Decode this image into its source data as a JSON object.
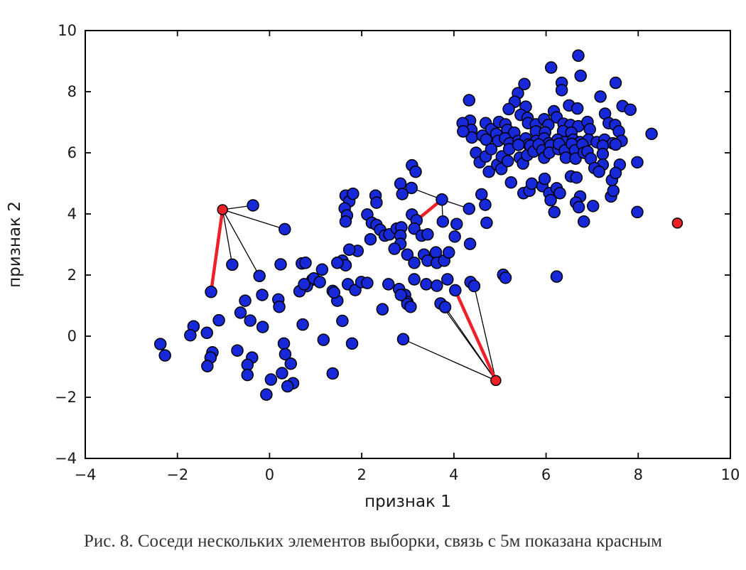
{
  "caption": {
    "text": "Рис. 8. Соседи нескольких элементов выборки, связь с 5м показана красным"
  },
  "chart_data": {
    "type": "scatter",
    "title": "",
    "xlabel": "признак 1",
    "ylabel": "признак 2",
    "xlim": [
      -4,
      10
    ],
    "ylim": [
      -4,
      10
    ],
    "xticks": [
      -4,
      -2,
      0,
      2,
      4,
      6,
      8,
      10
    ],
    "yticks": [
      -4,
      -2,
      0,
      2,
      4,
      6,
      8,
      10
    ],
    "xtick_labels": [
      "−4",
      "−2",
      "0",
      "2",
      "4",
      "6",
      "8",
      "10"
    ],
    "ytick_labels": [
      "−4",
      "−2",
      "0",
      "2",
      "4",
      "6",
      "8",
      "10"
    ],
    "grid": false,
    "legend": "none",
    "colors": {
      "marker": "#1628d8",
      "marker_edge": "#000000",
      "highlight": "#ee2128",
      "edge_line": "#000000",
      "axis": "#000000",
      "text": "#1a1a1a"
    },
    "marker": {
      "radius": 8,
      "query_radius": 7,
      "edge_width": 1.5
    },
    "query_points": [
      [
        -1.02,
        4.14
      ],
      [
        4.91,
        -1.45
      ],
      [
        8.85,
        3.7
      ]
    ],
    "edges": [
      {
        "from": [
          -1.02,
          4.14
        ],
        "to": [
          -0.36,
          4.28
        ],
        "type": "neighbor"
      },
      {
        "from": [
          -1.02,
          4.14
        ],
        "to": [
          0.33,
          3.5
        ],
        "type": "neighbor"
      },
      {
        "from": [
          -1.02,
          4.14
        ],
        "to": [
          -0.81,
          2.34
        ],
        "type": "neighbor"
      },
      {
        "from": [
          -1.02,
          4.14
        ],
        "to": [
          -0.22,
          1.97
        ],
        "type": "neighbor"
      },
      {
        "from": [
          -1.02,
          4.14
        ],
        "to": [
          -1.27,
          1.45
        ],
        "type": "fifth"
      },
      {
        "from": [
          3.74,
          4.47
        ],
        "to": [
          3.08,
          4.85
        ],
        "type": "neighbor"
      },
      {
        "from": [
          3.74,
          4.47
        ],
        "to": [
          4.33,
          4.17
        ],
        "type": "neighbor"
      },
      {
        "from": [
          3.74,
          4.47
        ],
        "to": [
          3.76,
          3.75
        ],
        "type": "neighbor"
      },
      {
        "from": [
          3.74,
          4.47
        ],
        "to": [
          3.19,
          3.79
        ],
        "type": "fifth"
      },
      {
        "from": [
          4.91,
          -1.45
        ],
        "to": [
          2.9,
          -0.1
        ],
        "type": "neighbor"
      },
      {
        "from": [
          4.91,
          -1.45
        ],
        "to": [
          3.71,
          1.07
        ],
        "type": "neighbor"
      },
      {
        "from": [
          4.91,
          -1.45
        ],
        "to": [
          3.81,
          0.95
        ],
        "type": "neighbor"
      },
      {
        "from": [
          4.91,
          -1.45
        ],
        "to": [
          4.44,
          1.64
        ],
        "type": "neighbor"
      },
      {
        "from": [
          4.91,
          -1.45
        ],
        "to": [
          4.03,
          1.5
        ],
        "type": "fifth"
      }
    ],
    "points": [
      [
        -0.81,
        2.34
      ],
      [
        -0.22,
        1.97
      ],
      [
        0.24,
        2.35
      ],
      [
        0.7,
        2.38
      ],
      [
        1.14,
        2.18
      ],
      [
        0.93,
        1.85
      ],
      [
        0.81,
        1.64
      ],
      [
        1.37,
        1.48
      ],
      [
        -1.27,
        1.45
      ],
      [
        -0.16,
        1.35
      ],
      [
        -0.53,
        1.16
      ],
      [
        -0.63,
        0.77
      ],
      [
        0.19,
        1.2
      ],
      [
        0.21,
        0.96
      ],
      [
        0.65,
        1.47
      ],
      [
        -0.42,
        0.51
      ],
      [
        -0.15,
        0.3
      ],
      [
        -1.1,
        0.52
      ],
      [
        -1.65,
        0.32
      ],
      [
        -1.72,
        0.03
      ],
      [
        -1.36,
        0.11
      ],
      [
        -2.37,
        -0.26
      ],
      [
        -2.27,
        -0.63
      ],
      [
        -1.24,
        -0.53
      ],
      [
        -1.28,
        -0.7
      ],
      [
        -1.35,
        -0.98
      ],
      [
        -0.7,
        -0.47
      ],
      [
        -0.38,
        -0.7
      ],
      [
        -0.48,
        -0.94
      ],
      [
        -0.48,
        -1.27
      ],
      [
        0.31,
        -0.24
      ],
      [
        0.34,
        -0.59
      ],
      [
        0.46,
        -0.9
      ],
      [
        0.51,
        -1.54
      ],
      [
        0.39,
        -1.64
      ],
      [
        0.03,
        -1.42
      ],
      [
        -0.07,
        -1.91
      ],
      [
        0.27,
        -1.21
      ],
      [
        1.17,
        -0.12
      ],
      [
        1.37,
        -1.22
      ],
      [
        0.72,
        0.38
      ],
      [
        1.79,
        -0.24
      ],
      [
        1.58,
        0.5
      ],
      [
        -0.36,
        4.28
      ],
      [
        0.33,
        3.5
      ],
      [
        1.65,
        4.6
      ],
      [
        1.73,
        4.41
      ],
      [
        1.81,
        4.66
      ],
      [
        2.3,
        4.6
      ],
      [
        2.32,
        4.37
      ],
      [
        1.63,
        4.18
      ],
      [
        1.68,
        3.95
      ],
      [
        1.65,
        3.75
      ],
      [
        2.12,
        3.98
      ],
      [
        2.22,
        3.71
      ],
      [
        2.32,
        3.64
      ],
      [
        2.4,
        3.48
      ],
      [
        2.19,
        3.17
      ],
      [
        2.5,
        3.29
      ],
      [
        2.6,
        3.33
      ],
      [
        2.76,
        3.52
      ],
      [
        2.86,
        3.56
      ],
      [
        3.09,
        3.98
      ],
      [
        3.19,
        3.79
      ],
      [
        3.14,
        3.52
      ],
      [
        3.3,
        3.29
      ],
      [
        3.43,
        3.33
      ],
      [
        2.84,
        3.29
      ],
      [
        2.84,
        3.02
      ],
      [
        2.71,
        2.86
      ],
      [
        2.99,
        2.67
      ],
      [
        3.14,
        2.4
      ],
      [
        3.35,
        2.67
      ],
      [
        3.43,
        2.47
      ],
      [
        3.61,
        2.74
      ],
      [
        3.63,
        2.4
      ],
      [
        3.79,
        2.47
      ],
      [
        3.89,
        2.74
      ],
      [
        1.91,
        2.79
      ],
      [
        1.73,
        2.83
      ],
      [
        1.58,
        2.47
      ],
      [
        1.65,
        2.32
      ],
      [
        1.47,
        2.4
      ],
      [
        0.96,
        1.89
      ],
      [
        1.09,
        1.77
      ],
      [
        0.78,
        2.4
      ],
      [
        0.75,
        1.7
      ],
      [
        1.7,
        1.7
      ],
      [
        1.86,
        1.51
      ],
      [
        1.99,
        1.77
      ],
      [
        2.12,
        1.74
      ],
      [
        1.47,
        1.16
      ],
      [
        1.4,
        1.43
      ],
      [
        2.58,
        1.7
      ],
      [
        2.81,
        1.54
      ],
      [
        2.94,
        1.35
      ],
      [
        2.99,
        1.12
      ],
      [
        2.45,
        0.88
      ],
      [
        3.76,
        3.75
      ],
      [
        3.74,
        4.47
      ],
      [
        3.08,
        4.85
      ],
      [
        2.84,
        4.99
      ],
      [
        2.88,
        4.65
      ],
      [
        3.09,
        5.59
      ],
      [
        3.17,
        5.38
      ],
      [
        4.33,
        4.17
      ],
      [
        2.85,
        1.35
      ],
      [
        2.99,
        1.05
      ],
      [
        3.06,
        0.96
      ],
      [
        3.14,
        1.86
      ],
      [
        3.4,
        1.7
      ],
      [
        3.63,
        1.65
      ],
      [
        3.86,
        1.86
      ],
      [
        4.03,
        1.5
      ],
      [
        4.36,
        1.77
      ],
      [
        4.44,
        1.64
      ],
      [
        3.71,
        1.07
      ],
      [
        3.81,
        0.95
      ],
      [
        2.9,
        -0.1
      ],
      [
        4.6,
        4.64
      ],
      [
        4.68,
        4.3
      ],
      [
        5.07,
        2.01
      ],
      [
        5.12,
        1.91
      ],
      [
        6.23,
        1.95
      ],
      [
        4.35,
        3.02
      ],
      [
        4.06,
        3.67
      ],
      [
        4.02,
        3.26
      ],
      [
        4.71,
        3.71
      ],
      [
        6.7,
        9.18
      ],
      [
        6.11,
        8.79
      ],
      [
        6.75,
        8.52
      ],
      [
        6.34,
        8.29
      ],
      [
        6.34,
        8.05
      ],
      [
        7.51,
        8.29
      ],
      [
        5.53,
        8.25
      ],
      [
        5.39,
        7.95
      ],
      [
        7.18,
        7.84
      ],
      [
        4.33,
        7.72
      ],
      [
        5.32,
        7.67
      ],
      [
        5.19,
        7.43
      ],
      [
        7.66,
        7.53
      ],
      [
        7.83,
        7.41
      ],
      [
        5.56,
        7.51
      ],
      [
        6.5,
        7.55
      ],
      [
        6.68,
        7.45
      ],
      [
        7.28,
        7.28
      ],
      [
        6.17,
        7.36
      ],
      [
        6.23,
        7.16
      ],
      [
        5.45,
        7.24
      ],
      [
        5.6,
        7.14
      ],
      [
        4.35,
        7.05
      ],
      [
        4.38,
        6.75
      ],
      [
        4.39,
        6.5
      ],
      [
        4.69,
        6.97
      ],
      [
        4.81,
        6.77
      ],
      [
        4.98,
        7.01
      ],
      [
        5.12,
        6.93
      ],
      [
        5.16,
        6.75
      ],
      [
        5.31,
        6.66
      ],
      [
        5.61,
        6.97
      ],
      [
        5.78,
        6.93
      ],
      [
        5.96,
        7.1
      ],
      [
        6.05,
        6.91
      ],
      [
        5.78,
        6.7
      ],
      [
        5.98,
        6.67
      ],
      [
        6.38,
        6.95
      ],
      [
        6.53,
        6.91
      ],
      [
        6.7,
        6.87
      ],
      [
        6.9,
        7.01
      ],
      [
        6.37,
        6.71
      ],
      [
        6.55,
        6.66
      ],
      [
        6.95,
        6.77
      ],
      [
        7.36,
        6.97
      ],
      [
        7.5,
        6.91
      ],
      [
        7.58,
        6.7
      ],
      [
        4.19,
        6.97
      ],
      [
        4.2,
        6.7
      ],
      [
        4.62,
        6.56
      ],
      [
        4.7,
        6.43
      ],
      [
        4.92,
        6.62
      ],
      [
        4.96,
        6.39
      ],
      [
        5.11,
        6.47
      ],
      [
        5.21,
        6.31
      ],
      [
        5.4,
        6.39
      ],
      [
        5.56,
        6.47
      ],
      [
        5.62,
        6.27
      ],
      [
        5.79,
        6.39
      ],
      [
        5.96,
        6.47
      ],
      [
        6.06,
        6.31
      ],
      [
        6.25,
        6.43
      ],
      [
        6.41,
        6.35
      ],
      [
        6.59,
        6.43
      ],
      [
        6.74,
        6.35
      ],
      [
        6.92,
        6.43
      ],
      [
        7.1,
        6.35
      ],
      [
        7.27,
        6.43
      ],
      [
        7.45,
        6.31
      ],
      [
        8.29,
        6.62
      ],
      [
        7.64,
        6.39
      ],
      [
        4.48,
        6.0
      ],
      [
        4.56,
        5.69
      ],
      [
        4.69,
        5.88
      ],
      [
        4.81,
        6.12
      ],
      [
        4.76,
        5.38
      ],
      [
        4.94,
        5.61
      ],
      [
        5.03,
        5.47
      ],
      [
        5.04,
        5.88
      ],
      [
        5.17,
        5.73
      ],
      [
        5.2,
        6.12
      ],
      [
        5.4,
        6.26
      ],
      [
        5.43,
        5.84
      ],
      [
        5.5,
        5.65
      ],
      [
        5.59,
        5.92
      ],
      [
        5.66,
        6.23
      ],
      [
        5.73,
        6.04
      ],
      [
        5.84,
        6.27
      ],
      [
        5.92,
        6.08
      ],
      [
        5.96,
        5.84
      ],
      [
        6.1,
        6.24
      ],
      [
        6.07,
        6.0
      ],
      [
        6.27,
        6.12
      ],
      [
        6.28,
        6.29
      ],
      [
        6.41,
        6.08
      ],
      [
        6.43,
        5.84
      ],
      [
        6.56,
        6.29
      ],
      [
        6.63,
        6.08
      ],
      [
        6.64,
        5.81
      ],
      [
        6.79,
        6.27
      ],
      [
        6.82,
        6.0
      ],
      [
        6.9,
        6.04
      ],
      [
        6.97,
        5.81
      ],
      [
        7.23,
        6.23
      ],
      [
        7.23,
        5.96
      ],
      [
        7.23,
        5.61
      ],
      [
        7.05,
        5.5
      ],
      [
        7.15,
        5.38
      ],
      [
        7.51,
        6.27
      ],
      [
        7.6,
        5.61
      ],
      [
        7.98,
        5.69
      ],
      [
        5.24,
        5.03
      ],
      [
        5.51,
        4.68
      ],
      [
        5.64,
        4.76
      ],
      [
        5.69,
        4.99
      ],
      [
        5.92,
        4.91
      ],
      [
        5.97,
        5.15
      ],
      [
        6.07,
        4.68
      ],
      [
        6.23,
        4.84
      ],
      [
        6.3,
        4.68
      ],
      [
        6.54,
        5.23
      ],
      [
        6.66,
        5.19
      ],
      [
        6.74,
        4.57
      ],
      [
        6.65,
        4.37
      ],
      [
        6.71,
        4.22
      ],
      [
        7.02,
        4.26
      ],
      [
        7.41,
        4.57
      ],
      [
        7.46,
        4.76
      ],
      [
        7.43,
        5.11
      ],
      [
        7.51,
        5.34
      ],
      [
        6.18,
        4.06
      ],
      [
        6.1,
        4.45
      ],
      [
        7.98,
        4.06
      ],
      [
        6.82,
        3.75
      ]
    ]
  }
}
